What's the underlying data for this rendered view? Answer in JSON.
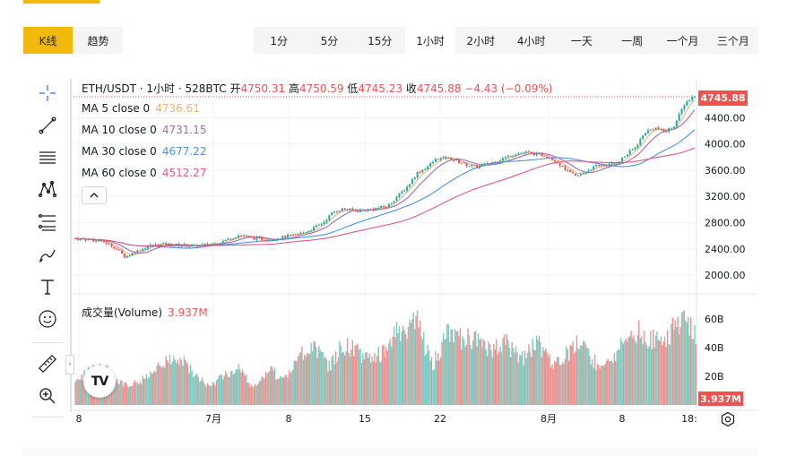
{
  "tabs": {
    "kline": "K线",
    "trend": "趋势"
  },
  "intervals": [
    "1分",
    "5分",
    "15分",
    "1小时",
    "2小时",
    "4小时",
    "一天",
    "一周",
    "一个月",
    "三个月"
  ],
  "active_interval": "1小时",
  "legend": {
    "title": "ETH/USDT · 1小时 · 528BTC",
    "open_label": "开",
    "open": "4750.31",
    "high_label": "高",
    "high": "4750.59",
    "low_label": "低",
    "low": "4745.23",
    "close_label": "收",
    "close": "4745.88",
    "change": "−4.43 (−0.09%)"
  },
  "ma": [
    {
      "label": "MA 5 close 0",
      "value": "4736.61",
      "color": "#f0b27a"
    },
    {
      "label": "MA 10 close 0",
      "value": "4731.15",
      "color": "#9c6ab8"
    },
    {
      "label": "MA 30 close 0",
      "value": "4677.22",
      "color": "#4a90e2"
    },
    {
      "label": "MA 60 close 0",
      "value": "4512.27",
      "color": "#e05a8a"
    }
  ],
  "toggle_icon": "chevron-up",
  "volume_legend": {
    "label": "成交量(Volume)",
    "value": "3.937M"
  },
  "price_tag": "4745.88",
  "volume_tag": "3.937M",
  "logo_text": "TV",
  "colors": {
    "up": "#26a69a",
    "down": "#ef5350",
    "accent": "#f0b90b"
  },
  "chart_data": {
    "type": "candlestick",
    "symbol": "ETH/USDT",
    "interval": "1小时",
    "price_axis_ticks": [
      "2000.00",
      "2400.00",
      "2800.00",
      "3200.00",
      "3600.00",
      "4000.00",
      "4400.00"
    ],
    "price_range": [
      1850,
      4830
    ],
    "volume_axis_ticks": [
      "20B",
      "40B",
      "60B"
    ],
    "volume_range": [
      0,
      70
    ],
    "x_tick_labels": [
      "8",
      "7月",
      "8",
      "15",
      "22",
      "8月",
      "8",
      "18:"
    ],
    "price_series": [
      [
        0,
        2560
      ],
      [
        3,
        2540
      ],
      [
        6,
        2500
      ],
      [
        8,
        2420
      ],
      [
        10,
        2280
      ],
      [
        12,
        2350
      ],
      [
        15,
        2450
      ],
      [
        18,
        2470
      ],
      [
        21,
        2460
      ],
      [
        24,
        2440
      ],
      [
        27,
        2470
      ],
      [
        30,
        2520
      ],
      [
        33,
        2610
      ],
      [
        36,
        2560
      ],
      [
        39,
        2540
      ],
      [
        42,
        2580
      ],
      [
        45,
        2620
      ],
      [
        48,
        2710
      ],
      [
        50,
        2800
      ],
      [
        52,
        2960
      ],
      [
        54,
        3010
      ],
      [
        57,
        2980
      ],
      [
        60,
        3010
      ],
      [
        63,
        3050
      ],
      [
        65,
        3200
      ],
      [
        67,
        3350
      ],
      [
        69,
        3560
      ],
      [
        71,
        3650
      ],
      [
        73,
        3780
      ],
      [
        75,
        3790
      ],
      [
        77,
        3740
      ],
      [
        79,
        3680
      ],
      [
        81,
        3650
      ],
      [
        83,
        3700
      ],
      [
        85,
        3740
      ],
      [
        87,
        3800
      ],
      [
        89,
        3860
      ],
      [
        91,
        3870
      ],
      [
        93,
        3840
      ],
      [
        95,
        3820
      ],
      [
        97,
        3740
      ],
      [
        99,
        3600
      ],
      [
        101,
        3500
      ],
      [
        103,
        3580
      ],
      [
        105,
        3660
      ],
      [
        107,
        3680
      ],
      [
        109,
        3700
      ],
      [
        111,
        3820
      ],
      [
        113,
        3950
      ],
      [
        115,
        4180
      ],
      [
        117,
        4250
      ],
      [
        119,
        4180
      ],
      [
        121,
        4300
      ],
      [
        123,
        4620
      ],
      [
        125,
        4746
      ]
    ],
    "volume_series": [
      [
        0,
        18
      ],
      [
        5,
        28
      ],
      [
        10,
        14
      ],
      [
        15,
        20
      ],
      [
        18,
        30
      ],
      [
        21,
        34
      ],
      [
        24,
        22
      ],
      [
        27,
        14
      ],
      [
        30,
        20
      ],
      [
        33,
        28
      ],
      [
        36,
        12
      ],
      [
        39,
        26
      ],
      [
        42,
        18
      ],
      [
        45,
        32
      ],
      [
        48,
        46
      ],
      [
        51,
        26
      ],
      [
        54,
        44
      ],
      [
        57,
        38
      ],
      [
        60,
        32
      ],
      [
        63,
        42
      ],
      [
        66,
        56
      ],
      [
        69,
        60
      ],
      [
        72,
        28
      ],
      [
        75,
        50
      ],
      [
        78,
        48
      ],
      [
        81,
        46
      ],
      [
        84,
        38
      ],
      [
        87,
        44
      ],
      [
        90,
        32
      ],
      [
        93,
        46
      ],
      [
        96,
        30
      ],
      [
        99,
        36
      ],
      [
        102,
        46
      ],
      [
        105,
        30
      ],
      [
        108,
        32
      ],
      [
        111,
        46
      ],
      [
        114,
        52
      ],
      [
        117,
        46
      ],
      [
        120,
        52
      ],
      [
        123,
        60
      ],
      [
        125,
        52
      ]
    ]
  }
}
